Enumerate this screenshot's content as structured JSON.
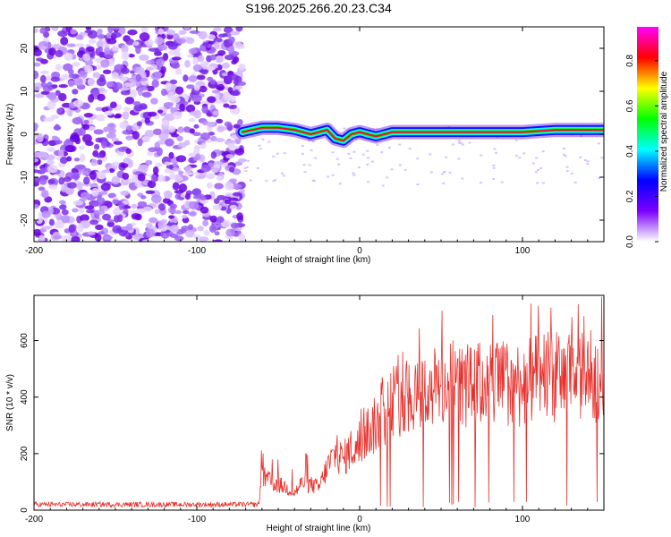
{
  "figure_title": "S196.2025.266.20.23.C34",
  "chart_data": [
    {
      "type": "heatmap",
      "xlabel": "Height of straight line (km)",
      "ylabel": "Frequency (Hz)",
      "xlim": [
        -200,
        150
      ],
      "ylim": [
        -25,
        25
      ],
      "xticks": [
        -200,
        -100,
        0,
        100
      ],
      "yticks": [
        -20,
        -10,
        0,
        10,
        20
      ],
      "colorbar": {
        "label": "Normalized spectral amplitude",
        "ticks": [
          "0.0",
          "0.2",
          "0.4",
          "0.6",
          "0.8"
        ],
        "colormap": [
          "#ffffff",
          "#7b00ff",
          "#0000ff",
          "#00ffff",
          "#00ff00",
          "#ffff00",
          "#ff0000",
          "#ff00ff"
        ]
      },
      "noise_region_x": [
        -200,
        -72
      ],
      "signal_region_x": [
        -72,
        150
      ],
      "ridge_frequency_hz": [
        [
          -72,
          0.5
        ],
        [
          -60,
          1.5
        ],
        [
          -50,
          1.5
        ],
        [
          -40,
          1.0
        ],
        [
          -30,
          0.0
        ],
        [
          -20,
          1.0
        ],
        [
          -15,
          -1.0
        ],
        [
          -10,
          -1.5
        ],
        [
          -5,
          0.0
        ],
        [
          0,
          0.5
        ],
        [
          10,
          -0.5
        ],
        [
          20,
          0.5
        ],
        [
          40,
          0.5
        ],
        [
          60,
          0.5
        ],
        [
          80,
          0.5
        ],
        [
          100,
          0.5
        ],
        [
          120,
          1.0
        ],
        [
          150,
          1.0
        ]
      ]
    },
    {
      "type": "line",
      "xlabel": "Height of straight line (km)",
      "ylabel": "SNR (10 * v/v)",
      "xlim": [
        -200,
        150
      ],
      "ylim": [
        0,
        760
      ],
      "xticks": [
        -200,
        -100,
        0,
        100
      ],
      "yticks": [
        0,
        200,
        400,
        600
      ],
      "series": [
        {
          "color": "#e8312c",
          "x": [
            -200,
            -180,
            -160,
            -140,
            -120,
            -100,
            -80,
            -62,
            -60,
            -55,
            -50,
            -45,
            -40,
            -35,
            -30,
            -25,
            -20,
            -15,
            -10,
            -5,
            0,
            5,
            10,
            15,
            20,
            25,
            30,
            35,
            40,
            50,
            60,
            70,
            80,
            90,
            100,
            110,
            120,
            130,
            140,
            150
          ],
          "y": [
            20,
            20,
            20,
            20,
            20,
            20,
            20,
            20,
            120,
            100,
            90,
            80,
            60,
            100,
            90,
            80,
            150,
            200,
            180,
            220,
            220,
            280,
            300,
            340,
            380,
            400,
            410,
            420,
            420,
            440,
            440,
            440,
            450,
            450,
            450,
            460,
            470,
            470,
            470,
            480
          ]
        }
      ]
    }
  ]
}
